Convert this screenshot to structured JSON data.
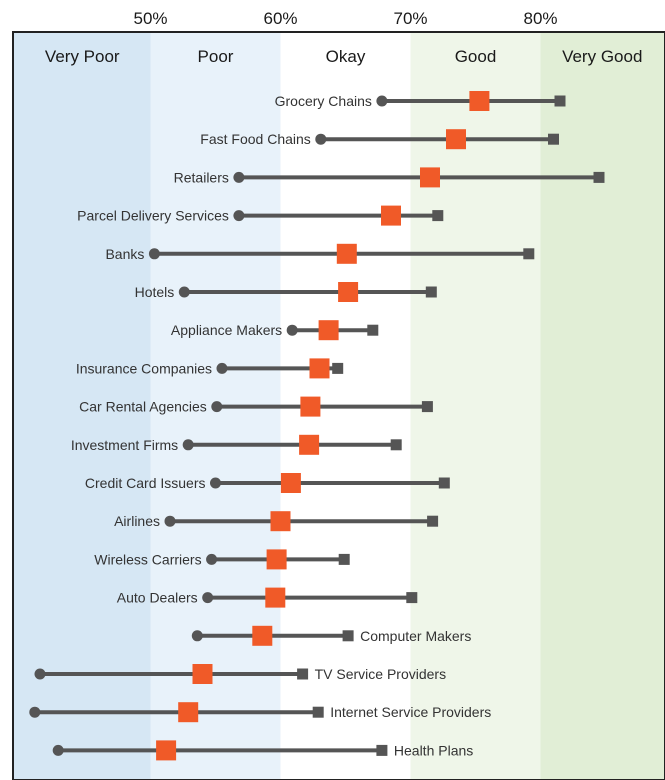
{
  "chart_data": {
    "type": "dot-range",
    "x_axis": {
      "ticks": [
        {
          "value": 50,
          "label": "50%"
        },
        {
          "value": 60,
          "label": "60%"
        },
        {
          "value": 70,
          "label": "70%"
        },
        {
          "value": 80,
          "label": "80%"
        }
      ],
      "xlim": [
        39.5,
        89.5
      ]
    },
    "bands": [
      {
        "label": "Very Poor",
        "from": 39.5,
        "to": 50,
        "color": "#d6e7f4"
      },
      {
        "label": "Poor",
        "from": 50,
        "to": 60,
        "color": "#e8f2fa"
      },
      {
        "label": "Okay",
        "from": 60,
        "to": 70,
        "color": "#ffffff"
      },
      {
        "label": "Good",
        "from": 70,
        "to": 80,
        "color": "#eff6e9"
      },
      {
        "label": "Very Good",
        "from": 80,
        "to": 89.5,
        "color": "#e1eed6"
      }
    ],
    "colors": {
      "range_line": "#555555",
      "low_marker": "#555555",
      "high_marker": "#555555",
      "mean_marker": "#f05a28"
    },
    "rows": [
      {
        "label": "Grocery Chains",
        "label_side": "left",
        "low": 67.8,
        "mean": 75.3,
        "high": 81.5
      },
      {
        "label": "Fast Food Chains",
        "label_side": "left",
        "low": 63.1,
        "mean": 73.5,
        "high": 81.0
      },
      {
        "label": "Retailers",
        "label_side": "left",
        "low": 56.8,
        "mean": 71.5,
        "high": 84.5
      },
      {
        "label": "Parcel Delivery Services",
        "label_side": "left",
        "low": 56.8,
        "mean": 68.5,
        "high": 72.1
      },
      {
        "label": "Banks",
        "label_side": "left",
        "low": 50.3,
        "mean": 65.1,
        "high": 79.1
      },
      {
        "label": "Hotels",
        "label_side": "left",
        "low": 52.6,
        "mean": 65.2,
        "high": 71.6
      },
      {
        "label": "Appliance Makers",
        "label_side": "left",
        "low": 60.9,
        "mean": 63.7,
        "high": 67.1
      },
      {
        "label": "Insurance Companies",
        "label_side": "left",
        "low": 55.5,
        "mean": 63.0,
        "high": 64.4
      },
      {
        "label": "Car Rental Agencies",
        "label_side": "left",
        "low": 55.1,
        "mean": 62.3,
        "high": 71.3
      },
      {
        "label": "Investment Firms",
        "label_side": "left",
        "low": 52.9,
        "mean": 62.2,
        "high": 68.9
      },
      {
        "label": "Credit Card Issuers",
        "label_side": "left",
        "low": 55.0,
        "mean": 60.8,
        "high": 72.6
      },
      {
        "label": "Airlines",
        "label_side": "left",
        "low": 51.5,
        "mean": 60.0,
        "high": 71.7
      },
      {
        "label": "Wireless Carriers",
        "label_side": "left",
        "low": 54.7,
        "mean": 59.7,
        "high": 64.9
      },
      {
        "label": "Auto Dealers",
        "label_side": "left",
        "low": 54.4,
        "mean": 59.6,
        "high": 70.1
      },
      {
        "label": "Computer Makers",
        "label_side": "right",
        "low": 53.6,
        "mean": 58.6,
        "high": 65.2
      },
      {
        "label": "TV Service Providers",
        "label_side": "right",
        "low": 41.5,
        "mean": 54.0,
        "high": 61.7
      },
      {
        "label": "Internet Service Providers",
        "label_side": "right",
        "low": 41.1,
        "mean": 52.9,
        "high": 62.9
      },
      {
        "label": "Health Plans",
        "label_side": "right",
        "low": 42.9,
        "mean": 51.2,
        "high": 67.8
      }
    ]
  }
}
